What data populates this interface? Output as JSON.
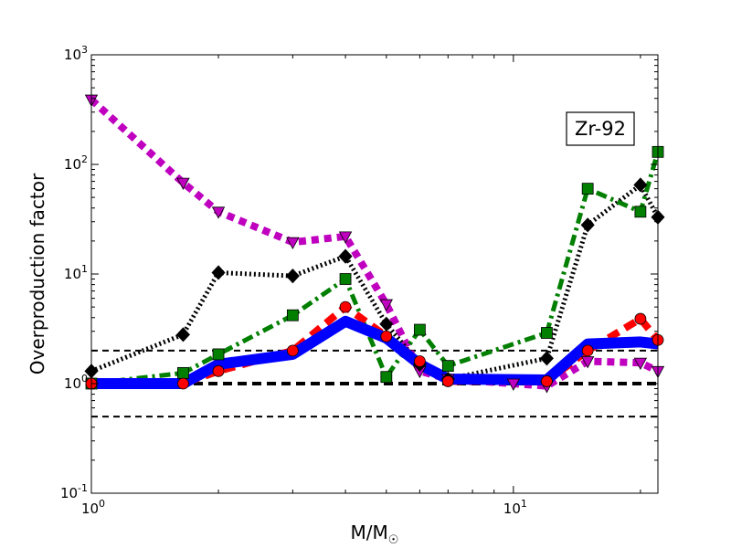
{
  "chart_data": {
    "type": "line",
    "title": "",
    "xlabel": "M/M",
    "xlabel_sub": "☉",
    "ylabel": "Overproduction factor",
    "xscale": "log",
    "yscale": "log",
    "xlim": [
      1,
      22
    ],
    "ylim": [
      0.1,
      1000
    ],
    "x_ticks": [
      {
        "base": "10",
        "exp": "0",
        "value": 1
      },
      {
        "base": "10",
        "exp": "1",
        "value": 10
      }
    ],
    "y_ticks": [
      {
        "base": "10",
        "exp": "-1",
        "value": 0.1
      },
      {
        "base": "10",
        "exp": "0",
        "value": 1
      },
      {
        "base": "10",
        "exp": "1",
        "value": 10
      },
      {
        "base": "10",
        "exp": "2",
        "value": 100
      },
      {
        "base": "10",
        "exp": "3",
        "value": 1000
      }
    ],
    "annotation": "Zr-92",
    "reference_lines": [
      {
        "y": 2.0,
        "style": "dashed-thin"
      },
      {
        "y": 1.0,
        "style": "dashed-thick"
      },
      {
        "y": 0.5,
        "style": "dashed-thin"
      }
    ],
    "series": [
      {
        "color": "#bf00bf",
        "style": "dotted",
        "marker": "triangle-down",
        "x": [
          1,
          1.65,
          2,
          3,
          4,
          5,
          6,
          7,
          10,
          12,
          15,
          20,
          22
        ],
        "y": [
          390,
          68,
          37,
          19.5,
          22,
          5.3,
          1.3,
          1.1,
          1.0,
          0.95,
          1.6,
          1.55,
          1.3
        ]
      },
      {
        "color": "#000000",
        "style": "dotted",
        "marker": "diamond",
        "x": [
          1,
          1.65,
          2,
          3,
          4,
          5,
          6,
          7,
          12,
          15,
          20,
          22
        ],
        "y": [
          1.3,
          2.8,
          10.3,
          9.6,
          14.5,
          3.5,
          1.5,
          1.1,
          1.7,
          28,
          65,
          33
        ]
      },
      {
        "color": "#007f00",
        "style": "dashdot",
        "marker": "square",
        "x": [
          1,
          1.65,
          2,
          3,
          4,
          5,
          6,
          7,
          12,
          15,
          20,
          22
        ],
        "y": [
          1.0,
          1.25,
          1.85,
          4.2,
          9.0,
          1.15,
          3.1,
          1.45,
          2.9,
          60,
          37,
          130
        ]
      },
      {
        "color": "#ff0000",
        "style": "dashed",
        "marker": "circle",
        "x": [
          1,
          1.65,
          2,
          3,
          4,
          5,
          6,
          7,
          12,
          15,
          20,
          22
        ],
        "y": [
          1.0,
          1.0,
          1.3,
          2.0,
          5.0,
          2.7,
          1.6,
          1.05,
          1.05,
          2.0,
          3.9,
          2.5
        ]
      },
      {
        "color": "#0000ff",
        "style": "solid",
        "marker": "none",
        "x": [
          1,
          1.65,
          2,
          3,
          4,
          5,
          6,
          7,
          12,
          15,
          20,
          22
        ],
        "y": [
          1.0,
          1.0,
          1.5,
          1.85,
          3.7,
          2.6,
          1.5,
          1.1,
          1.08,
          2.3,
          2.4,
          2.3
        ]
      }
    ]
  }
}
